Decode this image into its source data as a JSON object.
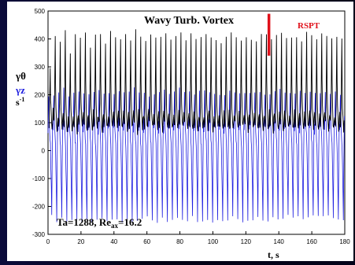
{
  "chart_data": {
    "type": "line",
    "title": "Wavy Turb. Vortex",
    "xlabel": "t, s",
    "ylabel_series1": "γθ",
    "ylabel_series2": "γz",
    "ylabel_unit": "s",
    "ylabel_unit_exp": "-1",
    "xlim": [
      0,
      180
    ],
    "ylim": [
      -300,
      500
    ],
    "xticks": [
      0,
      20,
      40,
      60,
      80,
      100,
      120,
      140,
      160,
      180
    ],
    "yticks": [
      -300,
      -200,
      -100,
      0,
      100,
      200,
      300,
      400,
      500
    ],
    "grid": false,
    "annotations": {
      "rspt_label": "RSPT",
      "rspt_marker_t": 134,
      "rspt_marker_range": [
        340,
        490
      ],
      "param_ta": "Ta=1288, Re",
      "param_sub": "ax",
      "param_val": "=16.2"
    },
    "series": [
      {
        "label": "γθ",
        "color": "#000000",
        "period_s": 3.05,
        "baseline": 80,
        "peaks": [
          300,
          405,
          395,
          430,
          345,
          415,
          400,
          425,
          365,
          410,
          420,
          385,
          430,
          410,
          400,
          415,
          390,
          430,
          405,
          395,
          420,
          400,
          410,
          420,
          395,
          410,
          420,
          400,
          415,
          395,
          405,
          420,
          410,
          400,
          380,
          410,
          420,
          405,
          395,
          410,
          400,
          395,
          420,
          415,
          400,
          410,
          420,
          405,
          400,
          410,
          395,
          420,
          410,
          400,
          415,
          410,
          405,
          410,
          400
        ]
      },
      {
        "label": "γz",
        "color": "#1f1fe0",
        "period_s": 3.05,
        "baseline": 40,
        "highs": [
          190,
          200,
          210,
          220,
          200,
          205,
          215,
          210,
          200,
          215,
          220,
          205,
          210,
          200,
          215,
          210,
          205,
          220,
          215,
          210,
          200,
          205,
          210,
          215,
          200,
          210,
          220,
          205,
          210,
          200,
          215,
          210,
          205,
          210,
          200,
          205,
          210,
          215,
          200,
          210,
          205,
          210,
          215,
          205,
          200,
          210,
          215,
          205,
          210,
          200,
          215,
          210,
          205,
          210,
          200,
          205,
          210,
          215,
          200
        ],
        "lows": [
          -230,
          -250,
          -240,
          -260,
          -245,
          -250,
          -255,
          -245,
          -260,
          -250,
          -240,
          -255,
          -250,
          -245,
          -260,
          -250,
          -255,
          -245,
          -250,
          -240,
          -255,
          -260,
          -245,
          -250,
          -255,
          -245,
          -250,
          -260,
          -240,
          -255,
          -250,
          -245,
          -260,
          -250,
          -255,
          -245,
          -240,
          -250,
          -255,
          -245,
          -250,
          -240,
          -245,
          -250,
          -235,
          -240,
          -245,
          -235,
          -240,
          -230,
          -245,
          -240,
          -235,
          -240,
          -230,
          -235,
          -240,
          -250,
          -245
        ]
      }
    ]
  }
}
